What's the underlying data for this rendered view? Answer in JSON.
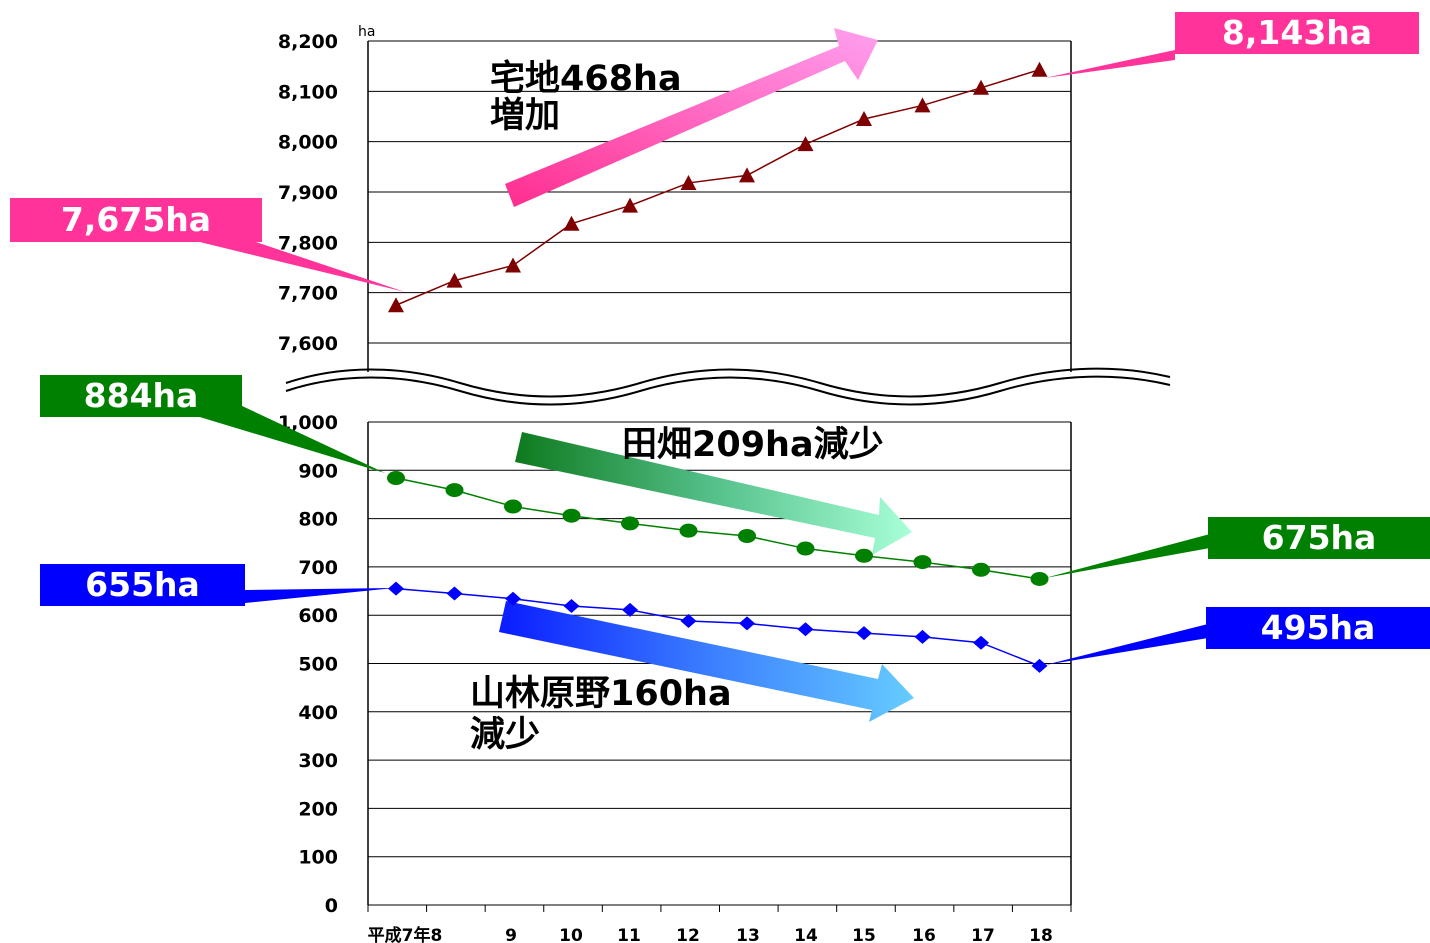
{
  "chart_data": [
    {
      "type": "line",
      "unit": "ha",
      "ylim": [
        7600,
        8200
      ],
      "yticks": [
        "7,600",
        "7,700",
        "7,800",
        "7,900",
        "8,000",
        "8,100",
        "8,200"
      ],
      "grid": true,
      "series": [
        {
          "marker": "triangle",
          "color": "#7f0000",
          "values": [
            7675,
            7724,
            7754,
            7837,
            7873,
            7918,
            7933,
            7995,
            8045,
            8072,
            8107,
            8143
          ],
          "start_label": "7,675ha",
          "end_label": "8,143ha"
        }
      ],
      "annotation": {
        "line1": "宅地468ha",
        "line2": "増加"
      }
    },
    {
      "type": "line",
      "ylim": [
        0,
        1000
      ],
      "yticks": [
        "0",
        "100",
        "200",
        "300",
        "400",
        "500",
        "600",
        "700",
        "800",
        "900",
        "1,000"
      ],
      "grid": true,
      "categories": [
        "平成7年",
        "8",
        "9",
        "10",
        "11",
        "12",
        "13",
        "14",
        "15",
        "16",
        "17",
        "18"
      ],
      "category_labels": [
        "平成7年8",
        "9",
        "10",
        "11",
        "12",
        "13",
        "14",
        "15",
        "16",
        "17",
        "18"
      ],
      "series": [
        {
          "marker": "circle",
          "color": "#008000",
          "values": [
            884,
            859,
            825,
            806,
            790,
            775,
            764,
            738,
            723,
            710,
            694,
            675
          ],
          "start_label": "884ha",
          "end_label": "675ha",
          "annotation": "田畑209ha減少"
        },
        {
          "marker": "diamond",
          "color": "#0000ff",
          "values": [
            655,
            645,
            634,
            619,
            611,
            588,
            583,
            571,
            563,
            555,
            543,
            495
          ],
          "start_label": "655ha",
          "end_label": "495ha",
          "annotation_line1": "山林原野160ha",
          "annotation_line2": "減少"
        }
      ]
    }
  ],
  "colors": {
    "pink": "#ff3399",
    "green": "#008000",
    "blue": "#0000ff",
    "dark_red": "#7f0000"
  }
}
